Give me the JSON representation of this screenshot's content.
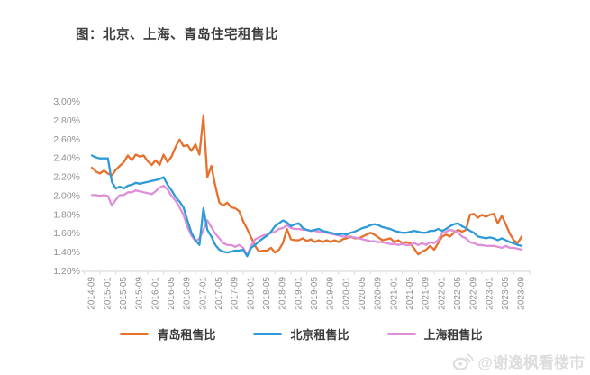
{
  "title": "图：北京、上海、青岛住宅租售比",
  "watermark": {
    "text": "@谢逸枫看楼市"
  },
  "colors": {
    "qingdao": "#E8702D",
    "beijing": "#2E9BD6",
    "shanghai": "#DE8FD8",
    "title_text": "#3B3B3B",
    "axis_text": "#8F8F8F",
    "axis_line": "#D6D6D6",
    "watermark_text": "#DCDCDC",
    "background": "#FFFFFF"
  },
  "chart_data": {
    "type": "line",
    "title": "图：北京、上海、青岛住宅租售比",
    "xlabel": "",
    "ylabel": "",
    "unit": "%",
    "grid": false,
    "legend_position": "bottom",
    "x_start": "2014-09",
    "x_end": "2023-09",
    "x_frequency": "monthly",
    "ylim": [
      1.2,
      3.0
    ],
    "y_tick_step": 0.2,
    "y_tick_labels": [
      "3.00%",
      "2.80%",
      "2.60%",
      "2.40%",
      "2.20%",
      "2.00%",
      "1.80%",
      "1.60%",
      "1.40%",
      "1.20%"
    ],
    "x_tick_labels": [
      "2014-09",
      "2015-01",
      "2015-05",
      "2015-09",
      "2016-01",
      "2016-05",
      "2016-09",
      "2017-01",
      "2017-05",
      "2017-09",
      "2018-01",
      "2018-05",
      "2018-09",
      "2019-01",
      "2019-05",
      "2019-09",
      "2020-01",
      "2020-05",
      "2020-09",
      "2021-01",
      "2021-05",
      "2021-09",
      "2022-01",
      "2022-05",
      "2022-09",
      "2023-01",
      "2023-05",
      "2023-09"
    ],
    "series": [
      {
        "id": "qingdao",
        "name": "青岛租售比",
        "color": "#E8702D",
        "values": [
          2.3,
          2.26,
          2.24,
          2.27,
          2.24,
          2.22,
          2.28,
          2.32,
          2.36,
          2.43,
          2.38,
          2.44,
          2.42,
          2.43,
          2.37,
          2.33,
          2.38,
          2.33,
          2.44,
          2.36,
          2.42,
          2.52,
          2.6,
          2.53,
          2.54,
          2.48,
          2.55,
          2.44,
          2.85,
          2.2,
          2.32,
          2.11,
          1.93,
          1.9,
          1.93,
          1.88,
          1.87,
          1.84,
          1.73,
          1.65,
          1.56,
          1.47,
          1.41,
          1.42,
          1.42,
          1.45,
          1.4,
          1.43,
          1.5,
          1.65,
          1.54,
          1.53,
          1.53,
          1.55,
          1.52,
          1.54,
          1.51,
          1.53,
          1.51,
          1.53,
          1.51,
          1.53,
          1.51,
          1.54,
          1.55,
          1.57,
          1.55,
          1.55,
          1.57,
          1.59,
          1.61,
          1.59,
          1.56,
          1.53,
          1.54,
          1.55,
          1.51,
          1.53,
          1.5,
          1.51,
          1.5,
          1.44,
          1.38,
          1.41,
          1.43,
          1.47,
          1.43,
          1.5,
          1.57,
          1.59,
          1.57,
          1.61,
          1.64,
          1.62,
          1.64,
          1.8,
          1.81,
          1.77,
          1.8,
          1.78,
          1.8,
          1.81,
          1.71,
          1.79,
          1.7,
          1.6,
          1.53,
          1.5,
          1.57
        ]
      },
      {
        "id": "beijing",
        "name": "北京租售比",
        "color": "#2E9BD6",
        "values": [
          2.43,
          2.41,
          2.4,
          2.4,
          2.4,
          2.15,
          2.08,
          2.1,
          2.08,
          2.11,
          2.12,
          2.14,
          2.13,
          2.14,
          2.15,
          2.16,
          2.17,
          2.18,
          2.2,
          2.12,
          2.06,
          1.99,
          1.94,
          1.88,
          1.74,
          1.61,
          1.53,
          1.48,
          1.87,
          1.64,
          1.57,
          1.48,
          1.43,
          1.41,
          1.4,
          1.41,
          1.42,
          1.42,
          1.43,
          1.36,
          1.45,
          1.48,
          1.52,
          1.55,
          1.58,
          1.62,
          1.68,
          1.71,
          1.74,
          1.72,
          1.68,
          1.7,
          1.71,
          1.66,
          1.64,
          1.63,
          1.64,
          1.65,
          1.63,
          1.62,
          1.61,
          1.6,
          1.59,
          1.6,
          1.59,
          1.61,
          1.62,
          1.64,
          1.66,
          1.67,
          1.69,
          1.7,
          1.69,
          1.67,
          1.66,
          1.65,
          1.63,
          1.62,
          1.61,
          1.61,
          1.62,
          1.63,
          1.62,
          1.61,
          1.61,
          1.63,
          1.63,
          1.65,
          1.63,
          1.65,
          1.68,
          1.7,
          1.71,
          1.68,
          1.66,
          1.63,
          1.61,
          1.57,
          1.56,
          1.55,
          1.56,
          1.55,
          1.53,
          1.55,
          1.53,
          1.51,
          1.5,
          1.48,
          1.47
        ]
      },
      {
        "id": "shanghai",
        "name": "上海租售比",
        "color": "#DE8FD8",
        "values": [
          2.01,
          2.01,
          2.0,
          2.01,
          2.0,
          1.9,
          1.96,
          2.01,
          2.01,
          2.04,
          2.04,
          2.06,
          2.05,
          2.04,
          2.03,
          2.02,
          2.05,
          2.09,
          2.11,
          2.07,
          2.0,
          1.95,
          1.88,
          1.8,
          1.67,
          1.58,
          1.52,
          1.55,
          1.64,
          1.74,
          1.67,
          1.6,
          1.55,
          1.5,
          1.48,
          1.48,
          1.46,
          1.48,
          1.45,
          1.37,
          1.47,
          1.54,
          1.56,
          1.58,
          1.59,
          1.61,
          1.62,
          1.65,
          1.66,
          1.69,
          1.66,
          1.65,
          1.65,
          1.64,
          1.64,
          1.63,
          1.63,
          1.62,
          1.62,
          1.61,
          1.6,
          1.59,
          1.58,
          1.57,
          1.57,
          1.56,
          1.56,
          1.55,
          1.54,
          1.53,
          1.52,
          1.52,
          1.51,
          1.51,
          1.5,
          1.49,
          1.49,
          1.48,
          1.49,
          1.48,
          1.48,
          1.5,
          1.48,
          1.5,
          1.48,
          1.51,
          1.5,
          1.53,
          1.61,
          1.62,
          1.64,
          1.63,
          1.61,
          1.57,
          1.55,
          1.51,
          1.5,
          1.48,
          1.48,
          1.47,
          1.47,
          1.47,
          1.46,
          1.45,
          1.47,
          1.45,
          1.45,
          1.44,
          1.43
        ]
      }
    ]
  }
}
